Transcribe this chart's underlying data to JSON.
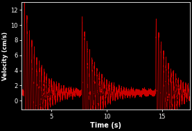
{
  "background_color": "#000000",
  "axes_color": "#000000",
  "line_color": "#cc0000",
  "tick_color": "#ffffff",
  "label_color": "#ffffff",
  "xlabel": "Time (s)",
  "ylabel": "Velocity (cm/s)",
  "xlim": [
    2.3,
    17.5
  ],
  "ylim": [
    -1.2,
    13.0
  ],
  "xticks": [
    5,
    10,
    15
  ],
  "yticks": [
    0,
    2,
    4,
    6,
    8,
    10,
    12
  ],
  "figsize": [
    2.77,
    1.89
  ],
  "dpi": 100,
  "burst_times": [
    2.5,
    7.72,
    14.42
  ],
  "burst_amplitudes": [
    12.5,
    10.0,
    9.9
  ],
  "decay_rate": 0.85,
  "oscillation_freq": 4.5,
  "baseline": 1.05,
  "noise_amp": 0.18,
  "burst_duration": 5.0,
  "line_width": 0.45,
  "num_points": 12000
}
